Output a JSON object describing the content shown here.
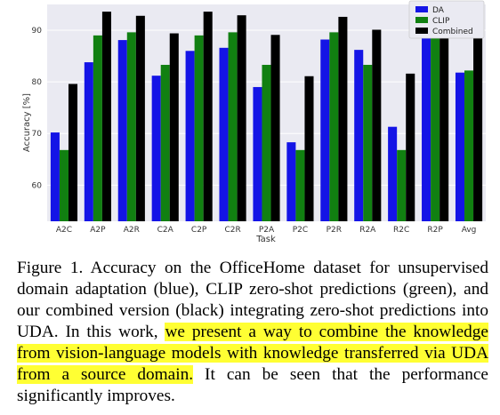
{
  "chart_data": {
    "type": "bar",
    "xlabel": "Task",
    "ylabel": "Accuracy [%]",
    "ylim": [
      53,
      95
    ],
    "yticks": [
      60,
      70,
      80,
      90
    ],
    "grid": true,
    "legend_position": "top-right",
    "categories": [
      "A2C",
      "A2P",
      "A2R",
      "C2A",
      "C2P",
      "C2R",
      "P2A",
      "P2C",
      "P2R",
      "R2A",
      "R2C",
      "R2P",
      "Avg"
    ],
    "series": [
      {
        "name": "DA",
        "color": "#1414e6",
        "values": [
          70.2,
          83.8,
          88.1,
          81.2,
          86.0,
          86.6,
          79.0,
          68.3,
          88.2,
          86.2,
          71.3,
          92.0,
          81.8
        ]
      },
      {
        "name": "CLIP",
        "color": "#118011",
        "values": [
          66.8,
          89.0,
          89.6,
          83.3,
          89.0,
          89.6,
          83.3,
          66.8,
          89.6,
          83.3,
          66.8,
          89.0,
          82.2
        ]
      },
      {
        "name": "Combined",
        "color": "#000000",
        "values": [
          79.6,
          93.6,
          92.8,
          89.4,
          93.6,
          92.9,
          89.1,
          81.1,
          92.6,
          90.1,
          81.6,
          94.0,
          89.2
        ]
      }
    ]
  },
  "caption": {
    "before": "Figure 1. Accuracy on the OfficeHome dataset for unsupervised domain adaptation (blue), CLIP zero-shot predictions (green), and our combined version (black) integrating zero-shot predictions into UDA. In this work, ",
    "highlight": "we present a way to combine the knowledge from vision-language models with knowledge transferred via UDA from a source domain.",
    "after": " It can be seen that the performance significantly improves."
  }
}
